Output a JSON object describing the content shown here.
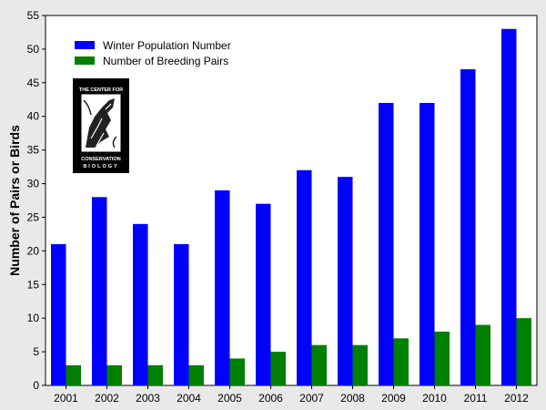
{
  "chart_data": {
    "type": "bar",
    "title": "",
    "xlabel": "",
    "ylabel": "Number of Pairs or Birds",
    "ylim": [
      0,
      55
    ],
    "yticks": [
      0,
      5,
      10,
      15,
      20,
      25,
      30,
      35,
      40,
      45,
      50,
      55
    ],
    "grid": false,
    "legend_position": "top-left",
    "categories": [
      "2001",
      "2002",
      "2003",
      "2004",
      "2005",
      "2006",
      "2007",
      "2008",
      "2009",
      "2010",
      "2011",
      "2012"
    ],
    "series": [
      {
        "name": "Winter Population Number",
        "color": "#0000ff",
        "values": [
          21,
          28,
          24,
          21,
          29,
          27,
          32,
          31,
          42,
          42,
          47,
          53
        ]
      },
      {
        "name": "Number of Breeding Pairs",
        "color": "#008000",
        "values": [
          3,
          3,
          3,
          3,
          4,
          5,
          6,
          6,
          7,
          8,
          9,
          10
        ]
      }
    ]
  },
  "logo": {
    "text_top": "THE CENTER FOR",
    "text_bottom1": "CONSERVATION",
    "text_bottom2": "BIOLOGY"
  }
}
